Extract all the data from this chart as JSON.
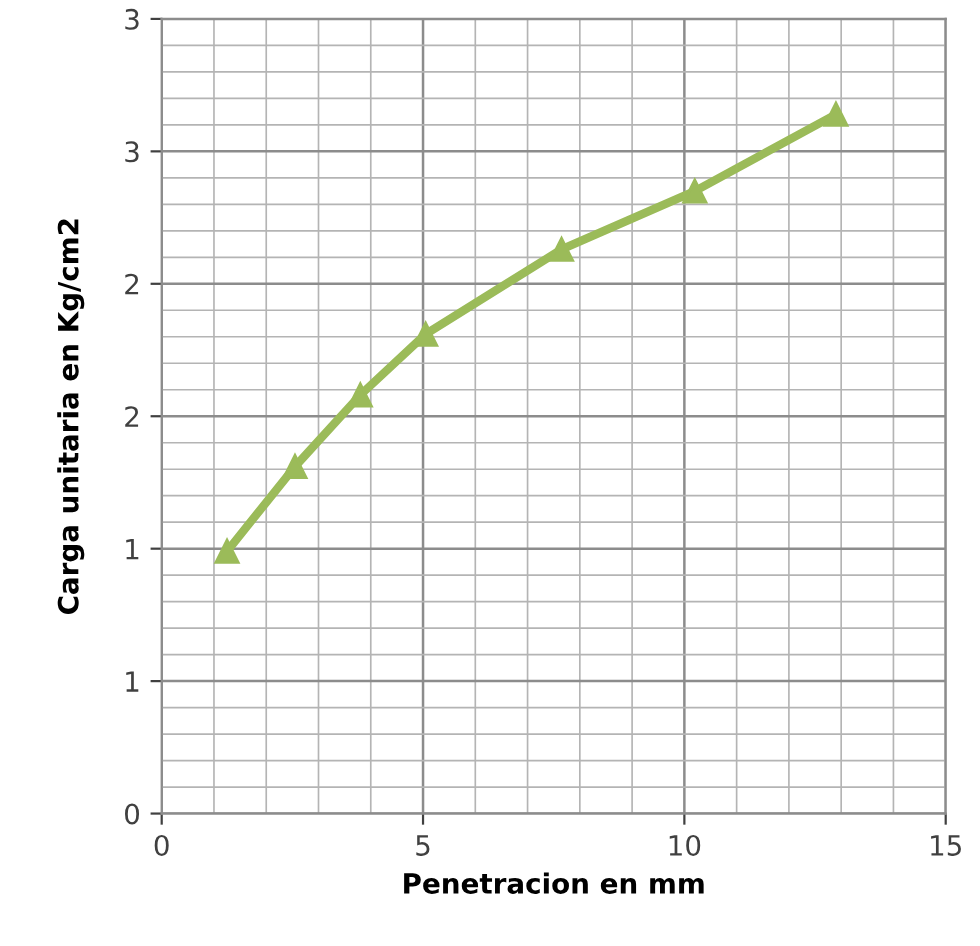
{
  "chart_data": {
    "type": "line",
    "xlabel": "Penetracion en mm",
    "ylabel": "Carga unitaria en Kg/cm2",
    "x": [
      1.25,
      2.55,
      3.8,
      5.05,
      7.65,
      10.2,
      12.9
    ],
    "series": [
      {
        "color": "#9bbb59",
        "values": [
          0.99,
          1.31,
          1.58,
          1.81,
          2.13,
          2.35,
          2.64
        ]
      }
    ],
    "xlim": [
      0,
      15
    ],
    "xticks": [
      0,
      5,
      10,
      15
    ],
    "ylim": [
      0,
      3
    ],
    "yticks": [
      0,
      {
        "value": 0.5,
        "label": "1"
      },
      1,
      {
        "value": 1.5,
        "label": "2"
      },
      2,
      {
        "value": 2.5,
        "label": "3"
      },
      3
    ],
    "grid": true,
    "marker": "triangle",
    "line_style": "solid"
  }
}
